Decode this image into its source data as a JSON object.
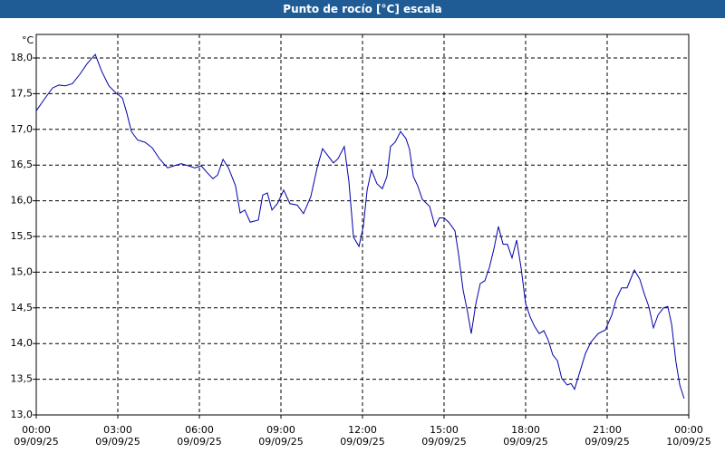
{
  "chart_data": {
    "type": "line",
    "title": "Punto de rocío [°C] escala",
    "y_unit": "°C",
    "x": [
      0,
      0.33,
      0.6,
      0.83,
      1.07,
      1.33,
      1.6,
      1.87,
      2.17,
      2.4,
      2.67,
      2.93,
      3.17,
      3.33,
      3.5,
      3.73,
      4,
      4.27,
      4.53,
      4.83,
      5.07,
      5.33,
      5.6,
      5.83,
      6.07,
      6.27,
      6.5,
      6.67,
      6.87,
      7.07,
      7.33,
      7.5,
      7.67,
      7.87,
      8.17,
      8.33,
      8.5,
      8.67,
      8.87,
      9.1,
      9.33,
      9.6,
      9.83,
      10.1,
      10.33,
      10.53,
      10.73,
      10.93,
      11.1,
      11.33,
      11.5,
      11.67,
      11.87,
      12.03,
      12.17,
      12.33,
      12.53,
      12.73,
      12.9,
      13.03,
      13.2,
      13.4,
      13.6,
      13.73,
      13.87,
      14.03,
      14.2,
      14.47,
      14.67,
      14.83,
      15,
      15.17,
      15.4,
      15.53,
      15.7,
      15.87,
      16,
      16.17,
      16.33,
      16.5,
      16.67,
      16.83,
      17,
      17.17,
      17.33,
      17.5,
      17.67,
      17.83,
      18,
      18.17,
      18.33,
      18.5,
      18.67,
      18.83,
      19,
      19.17,
      19.33,
      19.53,
      19.67,
      19.8,
      20,
      20.2,
      20.4,
      20.67,
      20.93,
      21.17,
      21.33,
      21.53,
      21.73,
      22,
      22.2,
      22.37,
      22.53,
      22.7,
      22.87,
      23.07,
      23.23,
      23.37,
      23.53,
      23.67,
      23.83
    ],
    "series": [
      {
        "name": "Punto de rocío",
        "color": "#0000a8",
        "values": [
          17.26,
          17.44,
          17.58,
          17.62,
          17.61,
          17.64,
          17.77,
          17.92,
          18.05,
          17.82,
          17.61,
          17.51,
          17.44,
          17.23,
          16.97,
          16.85,
          16.82,
          16.74,
          16.59,
          16.46,
          16.49,
          16.52,
          16.49,
          16.46,
          16.49,
          16.4,
          16.31,
          16.36,
          16.58,
          16.46,
          16.21,
          15.83,
          15.87,
          15.7,
          15.73,
          16.08,
          16.11,
          15.87,
          15.96,
          16.15,
          15.96,
          15.94,
          15.82,
          16.06,
          16.46,
          16.73,
          16.63,
          16.53,
          16.59,
          16.76,
          16.27,
          15.49,
          15.36,
          15.64,
          16.15,
          16.43,
          16.24,
          16.17,
          16.34,
          16.76,
          16.82,
          16.97,
          16.87,
          16.72,
          16.34,
          16.21,
          16.02,
          15.92,
          15.64,
          15.76,
          15.76,
          15.7,
          15.58,
          15.26,
          14.75,
          14.43,
          14.14,
          14.56,
          14.84,
          14.88,
          15.07,
          15.32,
          15.64,
          15.39,
          15.39,
          15.2,
          15.45,
          15.07,
          14.56,
          14.37,
          14.24,
          14.14,
          14.18,
          14.05,
          13.84,
          13.76,
          13.51,
          13.42,
          13.44,
          13.36,
          13.61,
          13.86,
          14.02,
          14.14,
          14.19,
          14.4,
          14.62,
          14.78,
          14.78,
          15.03,
          14.9,
          14.69,
          14.52,
          14.22,
          14.4,
          14.5,
          14.52,
          14.27,
          13.74,
          13.42,
          13.23
        ]
      }
    ],
    "xlim": [
      0,
      24
    ],
    "xticks": [
      {
        "value": 0,
        "label": "00:00\n09/09/25"
      },
      {
        "value": 3,
        "label": "03:00\n09/09/25"
      },
      {
        "value": 6,
        "label": "06:00\n09/09/25"
      },
      {
        "value": 9,
        "label": "09:00\n09/09/25"
      },
      {
        "value": 12,
        "label": "12:00\n09/09/25"
      },
      {
        "value": 15,
        "label": "15:00\n09/09/25"
      },
      {
        "value": 18,
        "label": "18:00\n09/09/25"
      },
      {
        "value": 21,
        "label": "21:00\n09/09/25"
      },
      {
        "value": 24,
        "label": "00:00\n10/09/25"
      }
    ],
    "ylim": [
      13.0,
      18.33
    ],
    "yticks": [
      {
        "value": 13.0,
        "label": "13,0"
      },
      {
        "value": 13.5,
        "label": "13,5"
      },
      {
        "value": 14.0,
        "label": "14,0"
      },
      {
        "value": 14.5,
        "label": "14,5"
      },
      {
        "value": 15.0,
        "label": "15,0"
      },
      {
        "value": 15.5,
        "label": "15,5"
      },
      {
        "value": 16.0,
        "label": "16,0"
      },
      {
        "value": 16.5,
        "label": "16,5"
      },
      {
        "value": 17.0,
        "label": "17,0"
      },
      {
        "value": 17.5,
        "label": "17,5"
      },
      {
        "value": 18.0,
        "label": "18,0"
      }
    ],
    "grid": true
  }
}
